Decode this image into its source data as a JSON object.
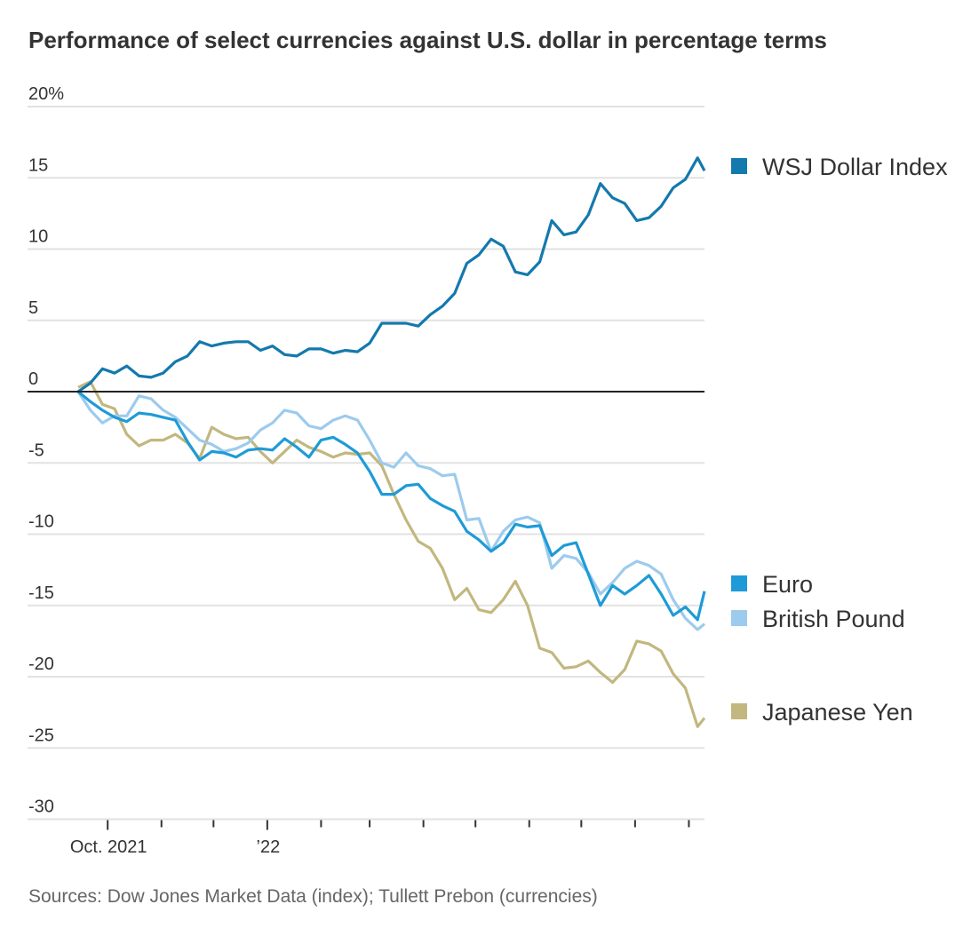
{
  "chart_data": {
    "type": "line",
    "title": "Performance of select currencies against U.S. dollar in percentage terms",
    "source": "Sources: Dow Jones Market Data (index); Tullett Prebon (currencies)",
    "xlabel": "",
    "ylabel": "",
    "ylim": [
      -30,
      20
    ],
    "xlim": [
      "2021-09-14",
      "2022-09-10"
    ],
    "grid": true,
    "legend_placement": "right, at line ends",
    "y_ticks": [
      {
        "value": 20,
        "label": "20%"
      },
      {
        "value": 15,
        "label": "15"
      },
      {
        "value": 10,
        "label": "10"
      },
      {
        "value": 5,
        "label": "5"
      },
      {
        "value": 0,
        "label": "0"
      },
      {
        "value": -5,
        "label": "-5"
      },
      {
        "value": -10,
        "label": "-10"
      },
      {
        "value": -15,
        "label": "-15"
      },
      {
        "value": -20,
        "label": "-20"
      },
      {
        "value": -25,
        "label": "-25"
      },
      {
        "value": -30,
        "label": "-30"
      }
    ],
    "x_ticks": [
      {
        "date": "2021-10-01",
        "label": "Oct. 2021",
        "major": true
      },
      {
        "date": "2021-11-01",
        "label": "",
        "major": false
      },
      {
        "date": "2021-12-01",
        "label": "",
        "major": false
      },
      {
        "date": "2022-01-01",
        "label": "’22",
        "major": true
      },
      {
        "date": "2022-02-01",
        "label": "",
        "major": false
      },
      {
        "date": "2022-03-01",
        "label": "",
        "major": false
      },
      {
        "date": "2022-04-01",
        "label": "",
        "major": false
      },
      {
        "date": "2022-05-01",
        "label": "",
        "major": false
      },
      {
        "date": "2022-06-01",
        "label": "",
        "major": false
      },
      {
        "date": "2022-07-01",
        "label": "",
        "major": false
      },
      {
        "date": "2022-08-01",
        "label": "",
        "major": false
      },
      {
        "date": "2022-09-01",
        "label": "",
        "major": false
      }
    ],
    "x": [
      "2021-09-14",
      "2021-09-21",
      "2021-09-28",
      "2021-10-05",
      "2021-10-12",
      "2021-10-19",
      "2021-10-26",
      "2021-11-02",
      "2021-11-09",
      "2021-11-16",
      "2021-11-23",
      "2021-11-30",
      "2021-12-07",
      "2021-12-14",
      "2021-12-21",
      "2021-12-28",
      "2022-01-04",
      "2022-01-11",
      "2022-01-18",
      "2022-01-25",
      "2022-02-01",
      "2022-02-08",
      "2022-02-15",
      "2022-02-22",
      "2022-03-01",
      "2022-03-08",
      "2022-03-15",
      "2022-03-22",
      "2022-03-29",
      "2022-04-05",
      "2022-04-12",
      "2022-04-19",
      "2022-04-26",
      "2022-05-03",
      "2022-05-10",
      "2022-05-17",
      "2022-05-24",
      "2022-05-31",
      "2022-06-07",
      "2022-06-14",
      "2022-06-21",
      "2022-06-28",
      "2022-07-05",
      "2022-07-12",
      "2022-07-19",
      "2022-07-26",
      "2022-08-02",
      "2022-08-09",
      "2022-08-16",
      "2022-08-23",
      "2022-08-30",
      "2022-09-06",
      "2022-09-10"
    ],
    "series": [
      {
        "name": "WSJ Dollar Index",
        "color": "#1479ad",
        "values": [
          0,
          0.6,
          1.6,
          1.3,
          1.8,
          1.1,
          1.0,
          1.3,
          2.1,
          2.5,
          3.5,
          3.2,
          3.4,
          3.5,
          3.5,
          2.9,
          3.2,
          2.6,
          2.5,
          3.0,
          3.0,
          2.7,
          2.9,
          2.8,
          3.4,
          4.8,
          4.8,
          4.8,
          4.6,
          5.4,
          6.0,
          6.9,
          9.0,
          9.6,
          10.7,
          10.2,
          8.4,
          8.2,
          9.1,
          12.0,
          11.0,
          11.2,
          12.4,
          14.6,
          13.6,
          13.2,
          12.0,
          12.2,
          13.0,
          14.3,
          14.9,
          16.4,
          15.5
        ]
      },
      {
        "name": "Euro",
        "color": "#1e9bd7",
        "values": [
          0,
          -0.7,
          -1.3,
          -1.8,
          -2.1,
          -1.5,
          -1.6,
          -1.8,
          -2.0,
          -3.5,
          -4.8,
          -4.2,
          -4.3,
          -4.6,
          -4.1,
          -4.0,
          -4.1,
          -3.3,
          -3.9,
          -4.6,
          -3.4,
          -3.2,
          -3.7,
          -4.3,
          -5.6,
          -7.2,
          -7.2,
          -6.6,
          -6.5,
          -7.5,
          -8.0,
          -8.4,
          -9.8,
          -10.4,
          -11.2,
          -10.6,
          -9.3,
          -9.5,
          -9.4,
          -11.5,
          -10.8,
          -10.6,
          -12.8,
          -15.0,
          -13.6,
          -14.2,
          -13.6,
          -12.9,
          -14.2,
          -15.7,
          -15.1,
          -16.0,
          -14.0
        ]
      },
      {
        "name": "British Pound",
        "color": "#9ccbed",
        "values": [
          0,
          -1.3,
          -2.2,
          -1.7,
          -1.7,
          -0.3,
          -0.5,
          -1.3,
          -1.8,
          -2.6,
          -3.4,
          -3.7,
          -4.2,
          -4.0,
          -3.6,
          -2.7,
          -2.2,
          -1.3,
          -1.5,
          -2.4,
          -2.6,
          -2.0,
          -1.7,
          -2.0,
          -3.4,
          -5.0,
          -5.3,
          -4.3,
          -5.2,
          -5.4,
          -5.9,
          -5.8,
          -9.0,
          -8.9,
          -11.2,
          -9.8,
          -9.0,
          -8.8,
          -9.2,
          -12.4,
          -11.5,
          -11.7,
          -12.7,
          -14.2,
          -13.4,
          -12.4,
          -11.9,
          -12.2,
          -12.8,
          -14.6,
          -15.9,
          -16.7,
          -16.3
        ]
      },
      {
        "name": "Japanese Yen",
        "color": "#c2b77f",
        "values": [
          0.3,
          0.7,
          -0.9,
          -1.2,
          -3.0,
          -3.8,
          -3.4,
          -3.4,
          -3.0,
          -3.6,
          -4.7,
          -2.5,
          -3.0,
          -3.3,
          -3.2,
          -4.2,
          -5.0,
          -4.2,
          -3.4,
          -3.9,
          -4.2,
          -4.6,
          -4.3,
          -4.4,
          -4.3,
          -5.2,
          -7.2,
          -9.0,
          -10.5,
          -11.0,
          -12.4,
          -14.6,
          -13.8,
          -15.3,
          -15.5,
          -14.6,
          -13.3,
          -15.0,
          -18.0,
          -18.3,
          -19.4,
          -19.3,
          -18.9,
          -19.7,
          -20.4,
          -19.5,
          -17.5,
          -17.7,
          -18.2,
          -19.8,
          -20.8,
          -23.5,
          -22.9
        ]
      }
    ]
  }
}
